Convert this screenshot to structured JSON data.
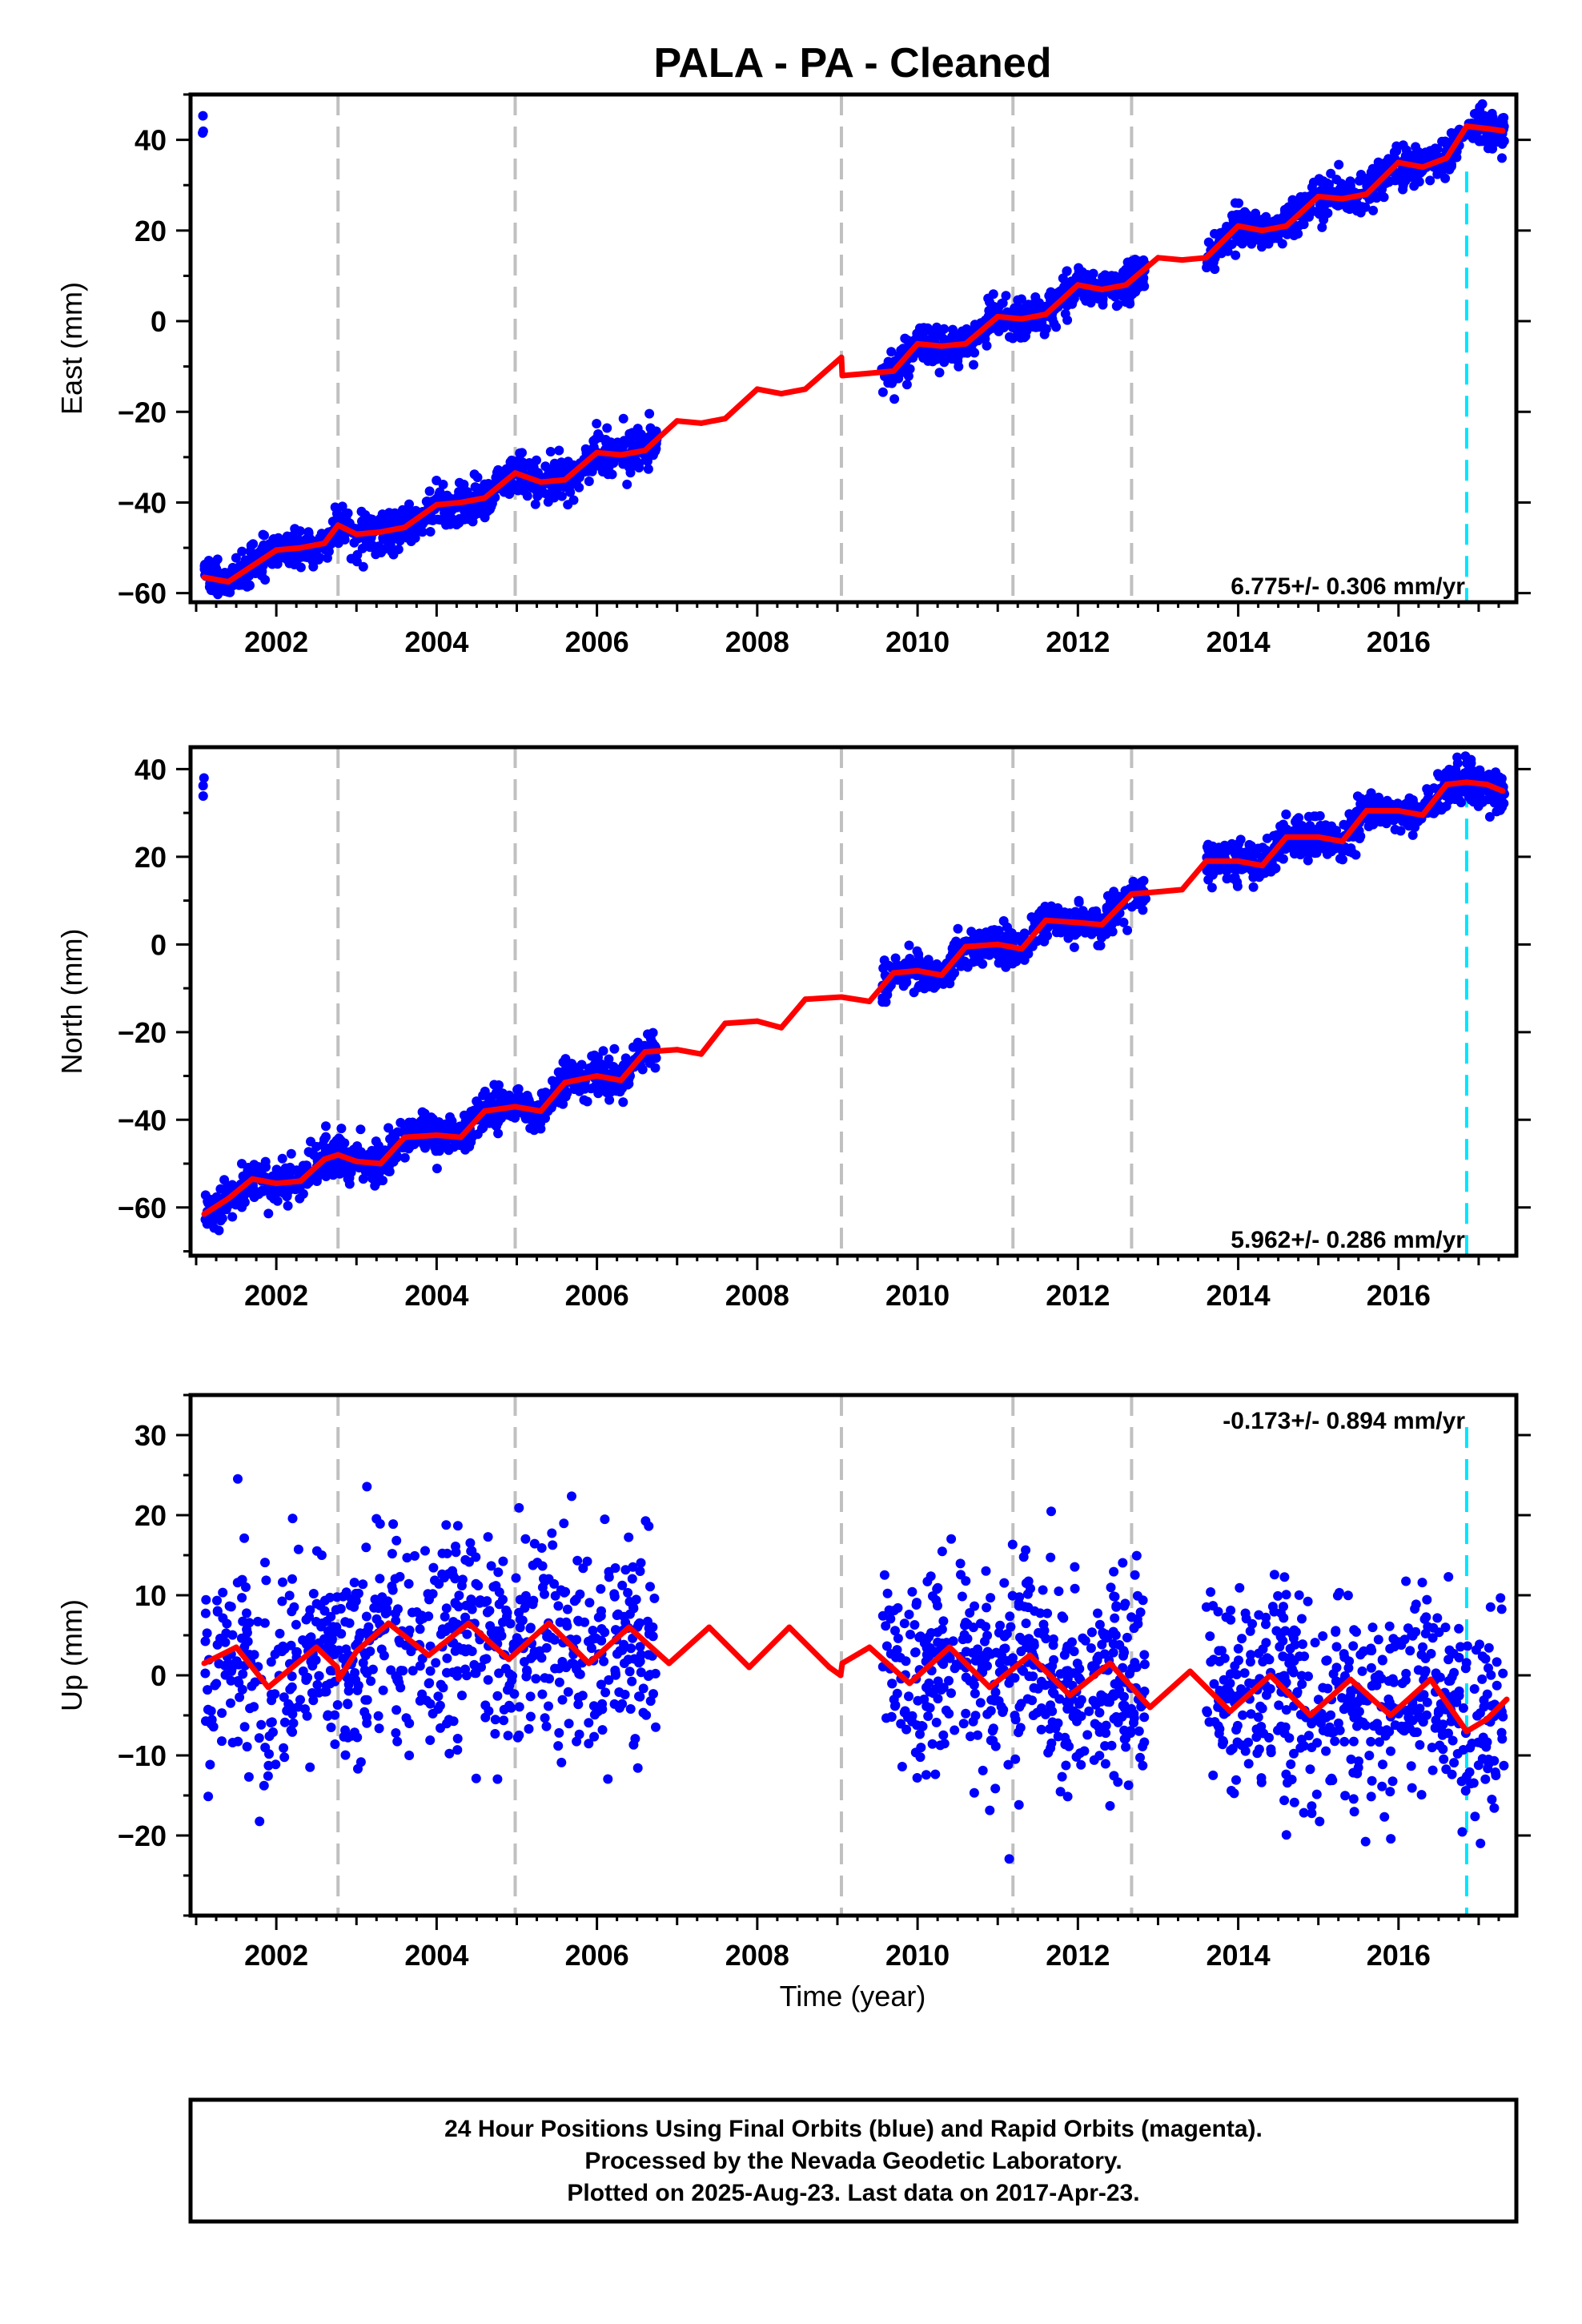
{
  "chart_data": {
    "title": "PALA  - PA - Cleaned",
    "xlabel": "Time (year)",
    "x_ticks": [
      2002,
      2004,
      2006,
      2008,
      2010,
      2012,
      2014,
      2016
    ],
    "xlim": [
      2000.93,
      2017.47
    ],
    "dashed_lines_gray": [
      2002.77,
      2004.98,
      2009.05,
      2011.19,
      2012.67
    ],
    "dashed_line_cyan": 2016.85,
    "panels": [
      {
        "ylabel": "East (mm)",
        "ylim": [
          -62,
          50
        ],
        "yticks": [
          -60,
          -40,
          -20,
          0,
          20,
          40
        ],
        "rate": "6.775+/- 0.306 mm/yr",
        "series": [
          {
            "x": 2001.1,
            "y": -56.5
          },
          {
            "x": 2001.4,
            "y": -57.5
          },
          {
            "x": 2001.7,
            "y": -54.0
          },
          {
            "x": 2002.0,
            "y": -50.5
          },
          {
            "x": 2002.3,
            "y": -50.0
          },
          {
            "x": 2002.6,
            "y": -49.0
          },
          {
            "x": 2002.77,
            "y": -45.0
          },
          {
            "x": 2003.0,
            "y": -47.0
          },
          {
            "x": 2003.3,
            "y": -46.5
          },
          {
            "x": 2003.6,
            "y": -45.5
          },
          {
            "x": 2004.0,
            "y": -40.5
          },
          {
            "x": 2004.3,
            "y": -40.0
          },
          {
            "x": 2004.6,
            "y": -39.0
          },
          {
            "x": 2004.98,
            "y": -33.5
          },
          {
            "x": 2005.3,
            "y": -35.5
          },
          {
            "x": 2005.6,
            "y": -35.0
          },
          {
            "x": 2006.0,
            "y": -29.0
          },
          {
            "x": 2006.3,
            "y": -29.5
          },
          {
            "x": 2006.6,
            "y": -28.5
          },
          {
            "x": 2007.0,
            "y": -22.0
          },
          {
            "x": 2007.3,
            "y": -22.5
          },
          {
            "x": 2007.6,
            "y": -21.5
          },
          {
            "x": 2008.0,
            "y": -15.0
          },
          {
            "x": 2008.3,
            "y": -16.0
          },
          {
            "x": 2008.6,
            "y": -15.0
          },
          {
            "x": 2009.05,
            "y": -8.0
          },
          {
            "x": 2009.06,
            "y": -12.0
          },
          {
            "x": 2009.4,
            "y": -11.5
          },
          {
            "x": 2009.7,
            "y": -11.0
          },
          {
            "x": 2010.0,
            "y": -5.0
          },
          {
            "x": 2010.3,
            "y": -5.5
          },
          {
            "x": 2010.6,
            "y": -5.0
          },
          {
            "x": 2011.0,
            "y": 1.0
          },
          {
            "x": 2011.3,
            "y": 0.5
          },
          {
            "x": 2011.6,
            "y": 1.5
          },
          {
            "x": 2012.0,
            "y": 8.0
          },
          {
            "x": 2012.3,
            "y": 7.0
          },
          {
            "x": 2012.6,
            "y": 8.0
          },
          {
            "x": 2013.0,
            "y": 14.0
          },
          {
            "x": 2013.3,
            "y": 13.5
          },
          {
            "x": 2013.6,
            "y": 14.0
          },
          {
            "x": 2014.0,
            "y": 21.0
          },
          {
            "x": 2014.3,
            "y": 20.0
          },
          {
            "x": 2014.6,
            "y": 21.0
          },
          {
            "x": 2015.0,
            "y": 27.5
          },
          {
            "x": 2015.3,
            "y": 27.0
          },
          {
            "x": 2015.6,
            "y": 28.0
          },
          {
            "x": 2016.0,
            "y": 35.0
          },
          {
            "x": 2016.3,
            "y": 34.0
          },
          {
            "x": 2016.6,
            "y": 36.0
          },
          {
            "x": 2016.85,
            "y": 43.0
          },
          {
            "x": 2017.1,
            "y": 42.5
          },
          {
            "x": 2017.3,
            "y": 42.0
          }
        ]
      },
      {
        "ylabel": "North (mm)",
        "ylim": [
          -71,
          45
        ],
        "yticks": [
          -60,
          -40,
          -20,
          0,
          20,
          40
        ],
        "rate": "5.962+/- 0.286 mm/yr",
        "series": [
          {
            "x": 2001.1,
            "y": -61.5
          },
          {
            "x": 2001.4,
            "y": -58.0
          },
          {
            "x": 2001.7,
            "y": -53.5
          },
          {
            "x": 2002.0,
            "y": -54.5
          },
          {
            "x": 2002.3,
            "y": -54.0
          },
          {
            "x": 2002.6,
            "y": -49.0
          },
          {
            "x": 2002.77,
            "y": -48.0
          },
          {
            "x": 2003.0,
            "y": -49.5
          },
          {
            "x": 2003.3,
            "y": -50.0
          },
          {
            "x": 2003.6,
            "y": -44.0
          },
          {
            "x": 2004.0,
            "y": -43.5
          },
          {
            "x": 2004.3,
            "y": -44.0
          },
          {
            "x": 2004.6,
            "y": -38.0
          },
          {
            "x": 2004.98,
            "y": -37.0
          },
          {
            "x": 2005.3,
            "y": -38.0
          },
          {
            "x": 2005.6,
            "y": -31.5
          },
          {
            "x": 2006.0,
            "y": -30.0
          },
          {
            "x": 2006.3,
            "y": -31.0
          },
          {
            "x": 2006.6,
            "y": -24.5
          },
          {
            "x": 2007.0,
            "y": -24.0
          },
          {
            "x": 2007.3,
            "y": -25.0
          },
          {
            "x": 2007.6,
            "y": -18.0
          },
          {
            "x": 2008.0,
            "y": -17.5
          },
          {
            "x": 2008.3,
            "y": -19.0
          },
          {
            "x": 2008.6,
            "y": -12.5
          },
          {
            "x": 2009.05,
            "y": -12.0
          },
          {
            "x": 2009.4,
            "y": -13.0
          },
          {
            "x": 2009.7,
            "y": -6.5
          },
          {
            "x": 2010.0,
            "y": -6.0
          },
          {
            "x": 2010.3,
            "y": -7.0
          },
          {
            "x": 2010.6,
            "y": -0.5
          },
          {
            "x": 2011.0,
            "y": 0.0
          },
          {
            "x": 2011.3,
            "y": -1.0
          },
          {
            "x": 2011.6,
            "y": 5.5
          },
          {
            "x": 2012.0,
            "y": 5.0
          },
          {
            "x": 2012.3,
            "y": 4.5
          },
          {
            "x": 2012.67,
            "y": 11.5
          },
          {
            "x": 2013.0,
            "y": 12.0
          },
          {
            "x": 2013.3,
            "y": 12.5
          },
          {
            "x": 2013.6,
            "y": 19.0
          },
          {
            "x": 2014.0,
            "y": 19.0
          },
          {
            "x": 2014.3,
            "y": 18.0
          },
          {
            "x": 2014.6,
            "y": 24.5
          },
          {
            "x": 2015.0,
            "y": 24.5
          },
          {
            "x": 2015.3,
            "y": 23.5
          },
          {
            "x": 2015.6,
            "y": 30.5
          },
          {
            "x": 2016.0,
            "y": 30.5
          },
          {
            "x": 2016.3,
            "y": 29.5
          },
          {
            "x": 2016.6,
            "y": 36.5
          },
          {
            "x": 2016.85,
            "y": 37.0
          },
          {
            "x": 2017.1,
            "y": 36.5
          },
          {
            "x": 2017.3,
            "y": 35.0
          }
        ]
      },
      {
        "ylabel": "Up (mm)",
        "ylim": [
          -30,
          35
        ],
        "yticks": [
          -20,
          -10,
          0,
          10,
          20,
          30
        ],
        "rate": "-0.173+/- 0.894 mm/yr",
        "series": [
          {
            "x": 2001.1,
            "y": 1.5
          },
          {
            "x": 2001.5,
            "y": 3.5
          },
          {
            "x": 2001.9,
            "y": -1.5
          },
          {
            "x": 2002.5,
            "y": 3.5
          },
          {
            "x": 2002.76,
            "y": 1.0
          },
          {
            "x": 2002.78,
            "y": -0.5
          },
          {
            "x": 2003.0,
            "y": 3.0
          },
          {
            "x": 2003.4,
            "y": 6.5
          },
          {
            "x": 2003.9,
            "y": 2.5
          },
          {
            "x": 2004.4,
            "y": 6.5
          },
          {
            "x": 2004.9,
            "y": 2.0
          },
          {
            "x": 2005.4,
            "y": 6.5
          },
          {
            "x": 2005.9,
            "y": 1.5
          },
          {
            "x": 2006.4,
            "y": 6.0
          },
          {
            "x": 2006.9,
            "y": 1.5
          },
          {
            "x": 2007.4,
            "y": 6.0
          },
          {
            "x": 2007.9,
            "y": 1.0
          },
          {
            "x": 2008.4,
            "y": 6.0
          },
          {
            "x": 2008.9,
            "y": 1.0
          },
          {
            "x": 2009.04,
            "y": 0.0
          },
          {
            "x": 2009.06,
            "y": 1.5
          },
          {
            "x": 2009.4,
            "y": 3.5
          },
          {
            "x": 2009.9,
            "y": -1.0
          },
          {
            "x": 2010.4,
            "y": 3.5
          },
          {
            "x": 2010.9,
            "y": -1.5
          },
          {
            "x": 2011.4,
            "y": 2.5
          },
          {
            "x": 2011.9,
            "y": -2.5
          },
          {
            "x": 2012.4,
            "y": 1.5
          },
          {
            "x": 2012.9,
            "y": -4.0
          },
          {
            "x": 2013.4,
            "y": 0.5
          },
          {
            "x": 2013.9,
            "y": -4.5
          },
          {
            "x": 2014.4,
            "y": 0.0
          },
          {
            "x": 2014.9,
            "y": -5.0
          },
          {
            "x": 2015.4,
            "y": -0.5
          },
          {
            "x": 2015.9,
            "y": -5.0
          },
          {
            "x": 2016.4,
            "y": -0.5
          },
          {
            "x": 2016.85,
            "y": -7.0
          },
          {
            "x": 2017.1,
            "y": -5.5
          },
          {
            "x": 2017.35,
            "y": -3.0
          }
        ]
      }
    ]
  },
  "footer": {
    "line1": "24 Hour Positions Using Final Orbits (blue) and Rapid Orbits (magenta).",
    "line2": "Processed by the Nevada Geodetic Laboratory.",
    "line3": "Plotted on 2025-Aug-23. Last data on 2017-Apr-23."
  },
  "colors": {
    "points": "#0000ff",
    "model": "#ff0000",
    "gray_dash": "#c0c0c0",
    "cyan_dash": "#00e5ff"
  }
}
